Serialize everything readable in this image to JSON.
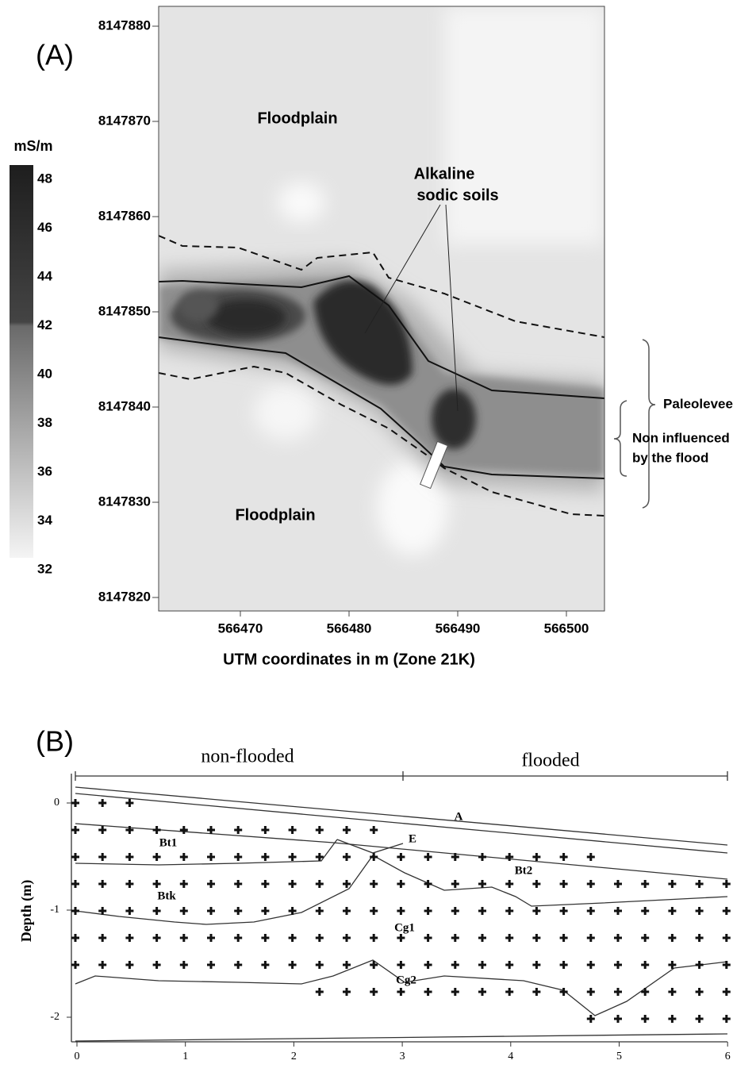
{
  "panel_a": {
    "label": "(A)",
    "colorbar": {
      "unit": "mS/m",
      "ticks": [
        48,
        46,
        44,
        42,
        40,
        38,
        36,
        34,
        32
      ]
    },
    "yticks": [
      8147880,
      8147870,
      8147860,
      8147850,
      8147840,
      8147830,
      8147820
    ],
    "xticks": [
      566470,
      566480,
      566490,
      566500
    ],
    "xlabel": "UTM coordinates in m (Zone 21K)",
    "floodplain_top": "Floodplain",
    "floodplain_bottom": "Floodplain",
    "alkaline": [
      "Alkaline",
      "sodic soils"
    ],
    "paleolevee": "Paleolevee",
    "non_influenced": [
      "Non influenced",
      "by the flood"
    ]
  },
  "panel_b": {
    "label": "(B)",
    "ylabel": "Depth (m)",
    "yticks": [
      0,
      -1,
      -2
    ],
    "xticks": [
      0,
      1,
      2,
      3,
      4,
      5,
      6
    ],
    "zones": [
      "non-flooded",
      "flooded"
    ],
    "horizons": [
      "A",
      "E",
      "Bt1",
      "Bt2",
      "Btk",
      "Cg1",
      "Cg2"
    ]
  }
}
